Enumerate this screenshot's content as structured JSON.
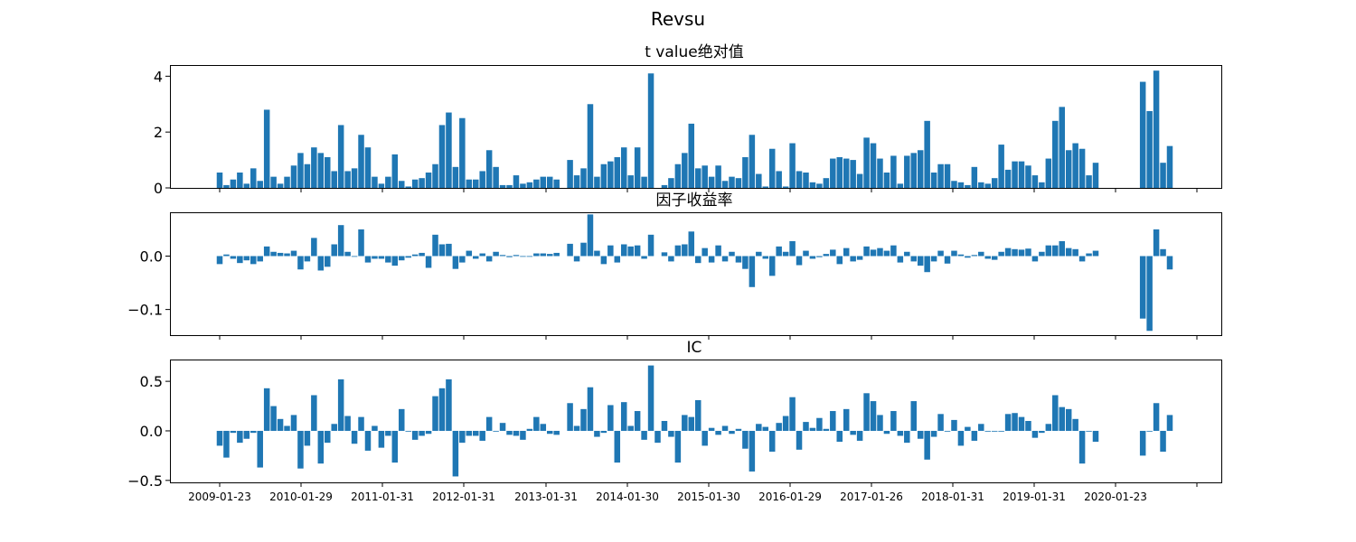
{
  "figure": {
    "suptitle": "Revsu"
  },
  "colors": {
    "bar": "#1f77b4",
    "axis": "#000000",
    "background": "#ffffff"
  },
  "x_tick_labels": [
    "2009-01-23",
    "2010-01-29",
    "2011-01-31",
    "2012-01-31",
    "2013-01-31",
    "2014-01-30",
    "2015-01-30",
    "2016-01-29",
    "2017-01-26",
    "2018-01-31",
    "2019-01-31",
    "2020-01-23"
  ],
  "chart_data": [
    {
      "type": "bar",
      "title": "t value绝对值",
      "ylim": [
        0,
        4.4
      ],
      "yticks": [
        0,
        2,
        4
      ],
      "ytick_labels": [
        "0",
        "2",
        "4"
      ],
      "grid": false,
      "values": [
        0.55,
        0.1,
        0.3,
        0.55,
        0.15,
        0.7,
        0.25,
        2.8,
        0.4,
        0.15,
        0.4,
        0.8,
        1.25,
        0.85,
        1.45,
        1.25,
        1.1,
        0.6,
        2.25,
        0.6,
        0.7,
        1.9,
        1.45,
        0.4,
        0.15,
        0.4,
        1.2,
        0.25,
        0.05,
        0.3,
        0.35,
        0.55,
        0.85,
        2.25,
        2.7,
        0.75,
        2.5,
        0.3,
        0.3,
        0.6,
        1.35,
        0.75,
        0.1,
        0.1,
        0.45,
        0.15,
        0.2,
        0.3,
        0.4,
        0.4,
        0.3,
        null,
        1.0,
        0.45,
        0.7,
        3.0,
        0.4,
        0.85,
        0.95,
        1.1,
        1.45,
        0.45,
        1.45,
        0.4,
        4.1,
        null,
        0.1,
        0.35,
        0.85,
        1.25,
        2.3,
        0.7,
        0.8,
        0.4,
        0.8,
        0.25,
        0.4,
        0.35,
        1.1,
        1.9,
        0.5,
        0.05,
        1.4,
        0.6,
        0.05,
        1.6,
        0.6,
        0.55,
        0.2,
        0.15,
        0.35,
        1.05,
        1.1,
        1.05,
        1.0,
        0.5,
        1.8,
        1.6,
        1.05,
        0.55,
        1.15,
        0.15,
        1.15,
        1.25,
        1.35,
        2.4,
        0.55,
        0.85,
        0.85,
        0.25,
        0.2,
        0.1,
        0.75,
        0.2,
        0.15,
        0.35,
        1.55,
        0.65,
        0.95,
        0.95,
        0.8,
        0.45,
        0.2,
        1.05,
        2.4,
        2.9,
        1.35,
        1.6,
        1.4,
        0.45,
        0.9,
        null,
        null,
        null,
        null,
        null,
        null,
        3.8,
        2.75,
        4.2,
        0.9,
        1.5
      ]
    },
    {
      "type": "bar",
      "title": "因子收益率",
      "ylim": [
        -0.148,
        0.082
      ],
      "yticks": [
        -0.1,
        0.0
      ],
      "ytick_labels": [
        "−0.1",
        "0.0"
      ],
      "grid": false,
      "values": [
        -0.015,
        0.003,
        -0.005,
        -0.013,
        -0.008,
        -0.015,
        -0.01,
        0.018,
        0.008,
        0.006,
        0.005,
        0.01,
        -0.025,
        -0.01,
        0.034,
        -0.027,
        -0.02,
        0.022,
        0.058,
        0.008,
        0.0,
        0.05,
        -0.012,
        -0.005,
        -0.005,
        -0.012,
        -0.018,
        -0.008,
        -0.003,
        0.003,
        0.006,
        -0.022,
        0.04,
        0.022,
        0.023,
        -0.024,
        -0.012,
        0.01,
        -0.005,
        0.005,
        -0.01,
        0.008,
        0.002,
        -0.002,
        0.002,
        0.0,
        0.0,
        0.005,
        0.005,
        0.004,
        0.006,
        null,
        0.023,
        -0.01,
        0.025,
        0.078,
        0.01,
        -0.015,
        0.02,
        -0.012,
        0.022,
        0.018,
        0.02,
        -0.005,
        0.04,
        null,
        0.007,
        -0.01,
        0.02,
        0.022,
        0.046,
        -0.013,
        0.015,
        -0.012,
        0.02,
        -0.01,
        0.008,
        -0.012,
        -0.024,
        -0.058,
        0.008,
        -0.005,
        -0.037,
        0.018,
        0.008,
        0.028,
        -0.017,
        0.01,
        -0.005,
        -0.002,
        0.004,
        0.012,
        -0.015,
        0.015,
        -0.01,
        -0.007,
        0.018,
        0.012,
        0.015,
        0.01,
        0.02,
        -0.012,
        0.008,
        -0.01,
        -0.018,
        -0.03,
        -0.01,
        0.01,
        -0.014,
        0.01,
        0.003,
        -0.003,
        0.002,
        0.008,
        -0.005,
        -0.007,
        0.008,
        0.015,
        0.013,
        0.012,
        0.014,
        -0.01,
        0.008,
        0.02,
        0.02,
        0.028,
        0.015,
        0.013,
        -0.01,
        0.005,
        0.01,
        null,
        null,
        null,
        null,
        null,
        null,
        -0.117,
        -0.14,
        0.05,
        0.013,
        -0.025
      ]
    },
    {
      "type": "bar",
      "title": "IC",
      "ylim": [
        -0.52,
        0.72
      ],
      "yticks": [
        -0.5,
        0.0,
        0.5
      ],
      "ytick_labels": [
        "−0.5",
        "0.0",
        "0.5"
      ],
      "grid": false,
      "values": [
        -0.15,
        -0.27,
        -0.02,
        -0.12,
        -0.08,
        -0.02,
        -0.37,
        0.43,
        0.25,
        0.12,
        0.05,
        0.16,
        -0.38,
        -0.15,
        0.36,
        -0.33,
        -0.12,
        0.07,
        0.52,
        0.15,
        -0.13,
        0.14,
        -0.2,
        0.05,
        -0.17,
        -0.05,
        -0.32,
        0.22,
        0.0,
        -0.09,
        -0.05,
        -0.03,
        0.35,
        0.43,
        0.52,
        -0.46,
        -0.12,
        -0.05,
        -0.05,
        -0.1,
        0.14,
        0.0,
        0.08,
        -0.04,
        -0.05,
        -0.09,
        0.02,
        0.14,
        0.07,
        -0.03,
        -0.04,
        null,
        0.28,
        0.05,
        0.22,
        0.44,
        -0.06,
        -0.02,
        0.26,
        -0.32,
        0.29,
        0.05,
        0.2,
        -0.09,
        0.66,
        -0.12,
        0.1,
        -0.06,
        -0.32,
        0.16,
        0.14,
        0.31,
        -0.15,
        0.03,
        -0.04,
        0.05,
        -0.03,
        0.02,
        -0.18,
        -0.41,
        0.07,
        0.04,
        -0.21,
        0.08,
        0.15,
        0.34,
        -0.19,
        0.09,
        0.03,
        0.13,
        0.02,
        0.2,
        -0.11,
        0.22,
        -0.04,
        -0.1,
        0.38,
        0.3,
        0.16,
        -0.03,
        0.2,
        -0.05,
        -0.12,
        0.3,
        -0.08,
        -0.29,
        -0.06,
        0.17,
        0.0,
        0.11,
        -0.15,
        0.04,
        -0.1,
        0.07,
        0.0,
        0.0,
        0.0,
        0.17,
        0.18,
        0.14,
        0.1,
        -0.07,
        -0.02,
        0.07,
        0.36,
        0.24,
        0.22,
        0.12,
        -0.33,
        0.0,
        -0.11,
        null,
        null,
        null,
        null,
        null,
        null,
        -0.25,
        0.0,
        0.28,
        -0.21,
        0.16
      ]
    }
  ]
}
